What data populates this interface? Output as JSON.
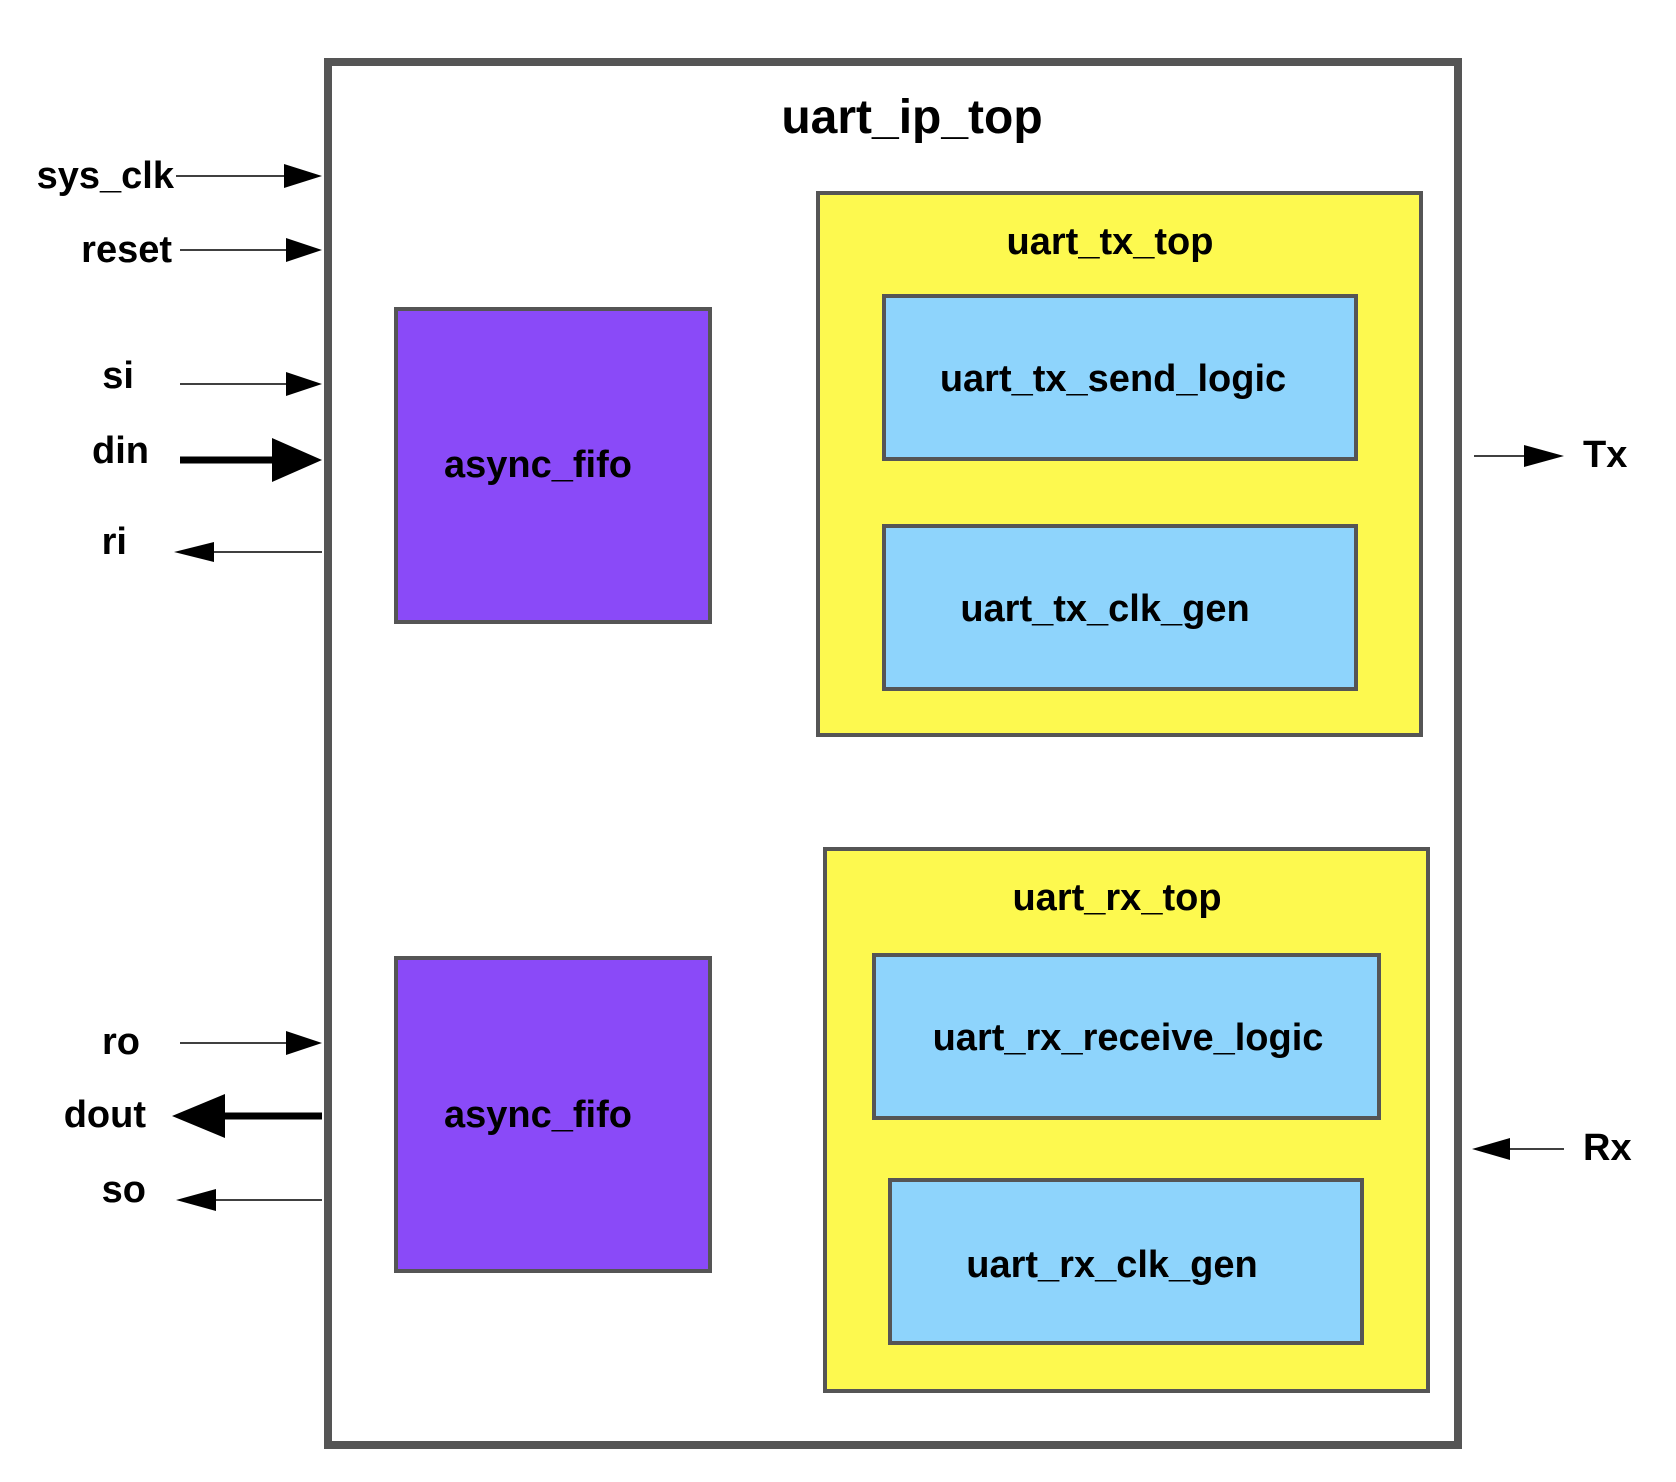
{
  "top_module": {
    "name": "uart_ip_top",
    "fill": "#ffffff",
    "border": "#555555"
  },
  "left_blocks": [
    {
      "name": "async_fifo",
      "fill": "#8a4af8"
    },
    {
      "name": "async_fifo",
      "fill": "#8a4af8"
    }
  ],
  "tx_top": {
    "name": "uart_tx_top",
    "fill": "#fdf94f",
    "children": [
      {
        "name": "uart_tx_send_logic",
        "fill": "#8ed4fc"
      },
      {
        "name": "uart_tx_clk_gen",
        "fill": "#8ed4fc"
      }
    ]
  },
  "rx_top": {
    "name": "uart_rx_top",
    "fill": "#fdf94f",
    "children": [
      {
        "name": "uart_rx_receive_logic",
        "fill": "#8ed4fc"
      },
      {
        "name": "uart_rx_clk_gen",
        "fill": "#8ed4fc"
      }
    ]
  },
  "ports_left": [
    {
      "name": "sys_clk",
      "direction": "in",
      "bus": false
    },
    {
      "name": "reset",
      "direction": "in",
      "bus": false
    },
    {
      "name": "si",
      "direction": "in",
      "bus": false
    },
    {
      "name": "din",
      "direction": "in",
      "bus": true
    },
    {
      "name": "ri",
      "direction": "out",
      "bus": false
    },
    {
      "name": "ro",
      "direction": "in",
      "bus": false
    },
    {
      "name": "dout",
      "direction": "out",
      "bus": true
    },
    {
      "name": "so",
      "direction": "out",
      "bus": false
    }
  ],
  "ports_right": [
    {
      "name": "Tx",
      "direction": "out",
      "bus": false
    },
    {
      "name": "Rx",
      "direction": "in",
      "bus": false
    }
  ]
}
